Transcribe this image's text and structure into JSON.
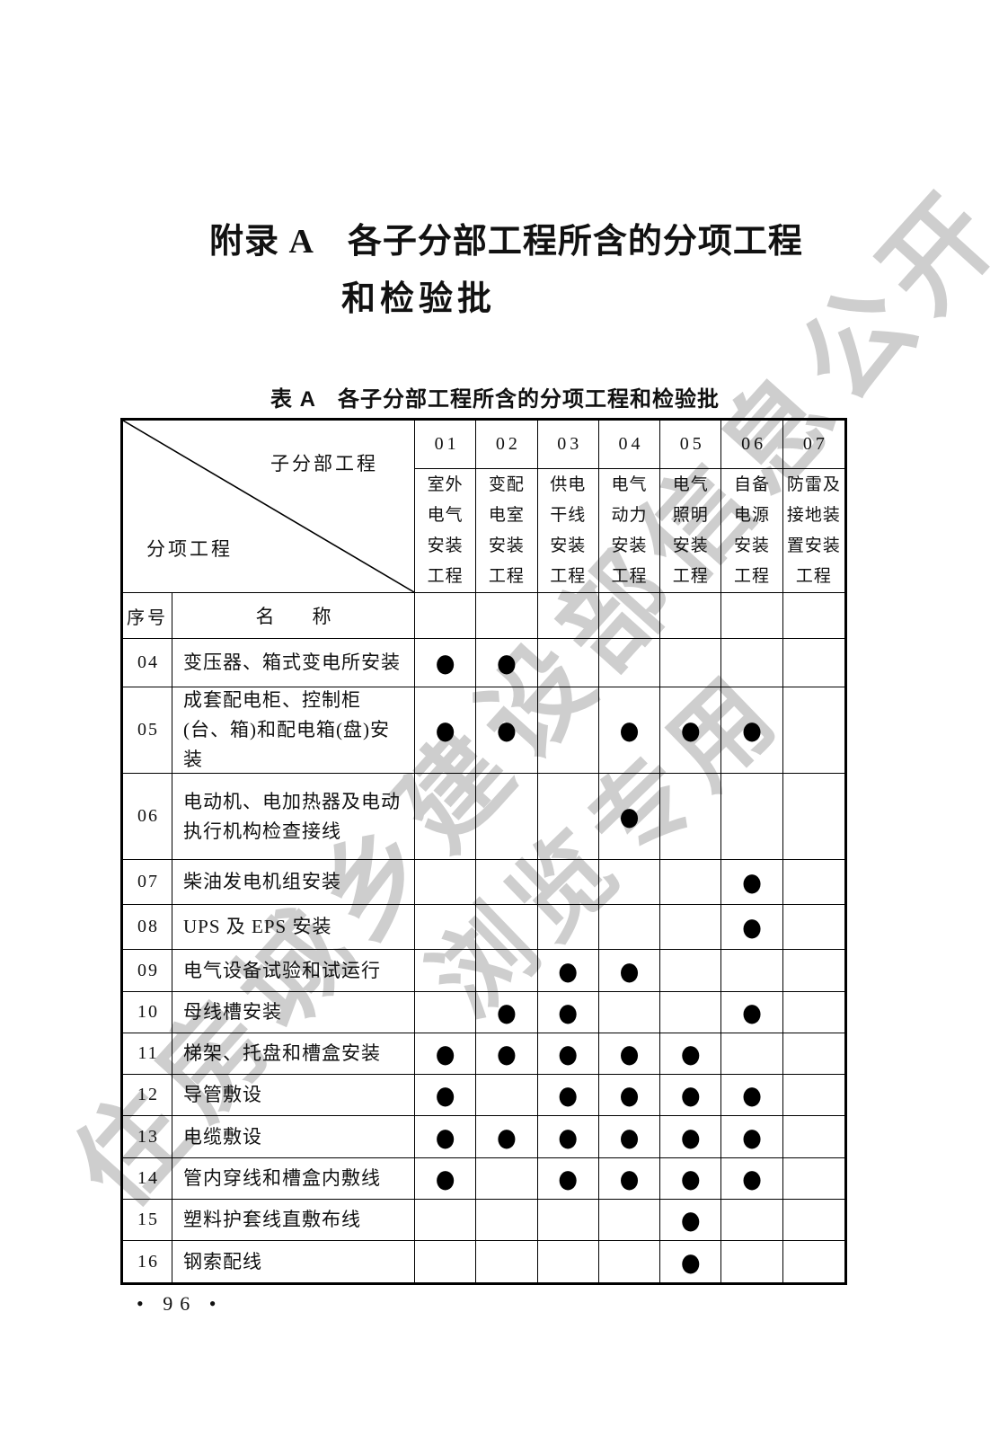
{
  "page": {
    "title_line1": "附录 A　各子分部工程所含的分项工程",
    "title_line2": "和检验批",
    "table_caption": "表 A　各子分部工程所含的分项工程和检验批",
    "page_number": "• 96 •"
  },
  "watermark": {
    "line1": "住房城乡建设部信息公开",
    "line2": "浏览专用",
    "color": "#c2c2c2"
  },
  "table": {
    "corner": {
      "top_right": "子分部工程",
      "bottom_left": "分项工程"
    },
    "col_codes": [
      "01",
      "02",
      "03",
      "04",
      "05",
      "06",
      "07"
    ],
    "col_names": [
      [
        "室外",
        "电气",
        "安装",
        "工程"
      ],
      [
        "变配",
        "电室",
        "安装",
        "工程"
      ],
      [
        "供电",
        "干线",
        "安装",
        "工程"
      ],
      [
        "电气",
        "动力",
        "安装",
        "工程"
      ],
      [
        "电气",
        "照明",
        "安装",
        "工程"
      ],
      [
        "自备",
        "电源",
        "安装",
        "工程"
      ],
      [
        "防雷及",
        "接地装",
        "置安装",
        "工程"
      ]
    ],
    "subheader": {
      "index_label": "序号",
      "name_label": "名　　称"
    },
    "dot_symbol": "●",
    "rows": [
      {
        "no": "04",
        "name": "变压器、箱式变电所安装",
        "marks": [
          1,
          1,
          0,
          0,
          0,
          0,
          0
        ]
      },
      {
        "no": "05",
        "name": "成套配电柜、控制柜(台、箱)和配电箱(盘)安装",
        "marks": [
          1,
          1,
          0,
          1,
          1,
          1,
          0
        ]
      },
      {
        "no": "06",
        "name": "电动机、电加热器及电动执行机构检查接线",
        "marks": [
          0,
          0,
          0,
          1,
          0,
          0,
          0
        ]
      },
      {
        "no": "07",
        "name": "柴油发电机组安装",
        "marks": [
          0,
          0,
          0,
          0,
          0,
          1,
          0
        ]
      },
      {
        "no": "08",
        "name": "UPS 及 EPS 安装",
        "marks": [
          0,
          0,
          0,
          0,
          0,
          1,
          0
        ]
      },
      {
        "no": "09",
        "name": "电气设备试验和试运行",
        "marks": [
          0,
          0,
          1,
          1,
          0,
          0,
          0
        ]
      },
      {
        "no": "10",
        "name": "母线槽安装",
        "marks": [
          0,
          1,
          1,
          0,
          0,
          1,
          0
        ]
      },
      {
        "no": "11",
        "name": "梯架、托盘和槽盒安装",
        "marks": [
          1,
          1,
          1,
          1,
          1,
          0,
          0
        ]
      },
      {
        "no": "12",
        "name": "导管敷设",
        "marks": [
          1,
          0,
          1,
          1,
          1,
          1,
          0
        ]
      },
      {
        "no": "13",
        "name": "电缆敷设",
        "marks": [
          1,
          1,
          1,
          1,
          1,
          1,
          0
        ]
      },
      {
        "no": "14",
        "name": "管内穿线和槽盒内敷线",
        "marks": [
          1,
          0,
          1,
          1,
          1,
          1,
          0
        ]
      },
      {
        "no": "15",
        "name": "塑料护套线直敷布线",
        "marks": [
          0,
          0,
          0,
          0,
          1,
          0,
          0
        ]
      },
      {
        "no": "16",
        "name": "钢索配线",
        "marks": [
          0,
          0,
          0,
          0,
          1,
          0,
          0
        ]
      }
    ]
  }
}
